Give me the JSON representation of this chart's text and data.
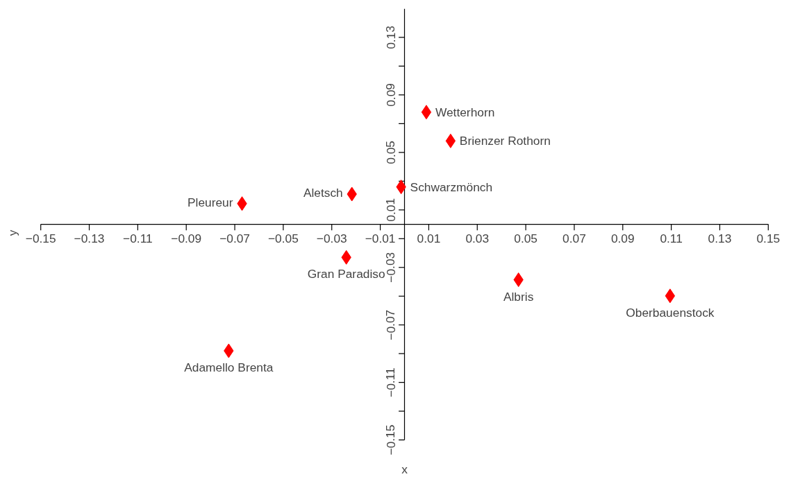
{
  "chart_data": {
    "type": "scatter",
    "xlabel": "x",
    "ylabel": "y",
    "x": [
      0.009,
      0.019,
      -0.0014,
      -0.0217,
      -0.067,
      -0.024,
      0.047,
      0.1095,
      -0.0725
    ],
    "values": [
      0.078,
      0.058,
      0.026,
      0.021,
      0.0144,
      -0.023,
      -0.0386,
      -0.0498,
      -0.088
    ],
    "color": "#ff0000",
    "marker": "diamond",
    "grid": false,
    "xlim": [
      -0.15,
      0.15
    ],
    "ylim": [
      -0.15,
      0.15
    ],
    "xticks": [
      {
        "value": -0.15,
        "label": "−0.15"
      },
      {
        "value": -0.13,
        "label": "−0.13"
      },
      {
        "value": -0.11,
        "label": "−0.11"
      },
      {
        "value": -0.09,
        "label": "−0.09"
      },
      {
        "value": -0.07,
        "label": "−0.07"
      },
      {
        "value": -0.05,
        "label": "−0.05"
      },
      {
        "value": -0.03,
        "label": "−0.03"
      },
      {
        "value": -0.01,
        "label": "−0.01"
      },
      0.01,
      0.03,
      0.05,
      0.07,
      0.09,
      0.11,
      0.13,
      0.15
    ],
    "yticks": [
      {
        "value": -0.15,
        "label": "−0.15"
      },
      {
        "value": -0.13,
        "label": null
      },
      {
        "value": -0.11,
        "label": "−0.11"
      },
      {
        "value": -0.09,
        "label": null
      },
      {
        "value": -0.07,
        "label": "−0.07"
      },
      {
        "value": -0.05,
        "label": null
      },
      {
        "value": -0.03,
        "label": "−0.03"
      },
      {
        "value": -0.01,
        "label": null
      },
      {
        "value": 0.01,
        "label": "0.01"
      },
      {
        "value": 0.03,
        "label": null
      },
      {
        "value": 0.05,
        "label": "0.05"
      },
      {
        "value": 0.07,
        "label": null
      },
      {
        "value": 0.09,
        "label": "0.09"
      },
      {
        "value": 0.11,
        "label": null
      },
      {
        "value": 0.13,
        "label": "0.13"
      }
    ],
    "annotations": [
      {
        "text": "Wetterhorn",
        "x": 0.009,
        "y": 0.078
      },
      {
        "text": "Brienzer Rothorn",
        "x": 0.019,
        "y": 0.058
      },
      {
        "text": "Schwarzmönch",
        "x": -0.0014,
        "y": 0.026
      },
      {
        "text": "Aletsch",
        "x": -0.0217,
        "y": 0.021
      },
      {
        "text": "Pleureur",
        "x": -0.067,
        "y": 0.0144
      },
      {
        "text": "Gran Paradiso",
        "x": -0.024,
        "y": -0.023
      },
      {
        "text": "Albris",
        "x": 0.047,
        "y": -0.0386
      },
      {
        "text": "Oberbauenstock",
        "x": 0.1095,
        "y": -0.0498
      },
      {
        "text": "Adamello Brenta",
        "x": -0.0725,
        "y": -0.088
      }
    ]
  }
}
